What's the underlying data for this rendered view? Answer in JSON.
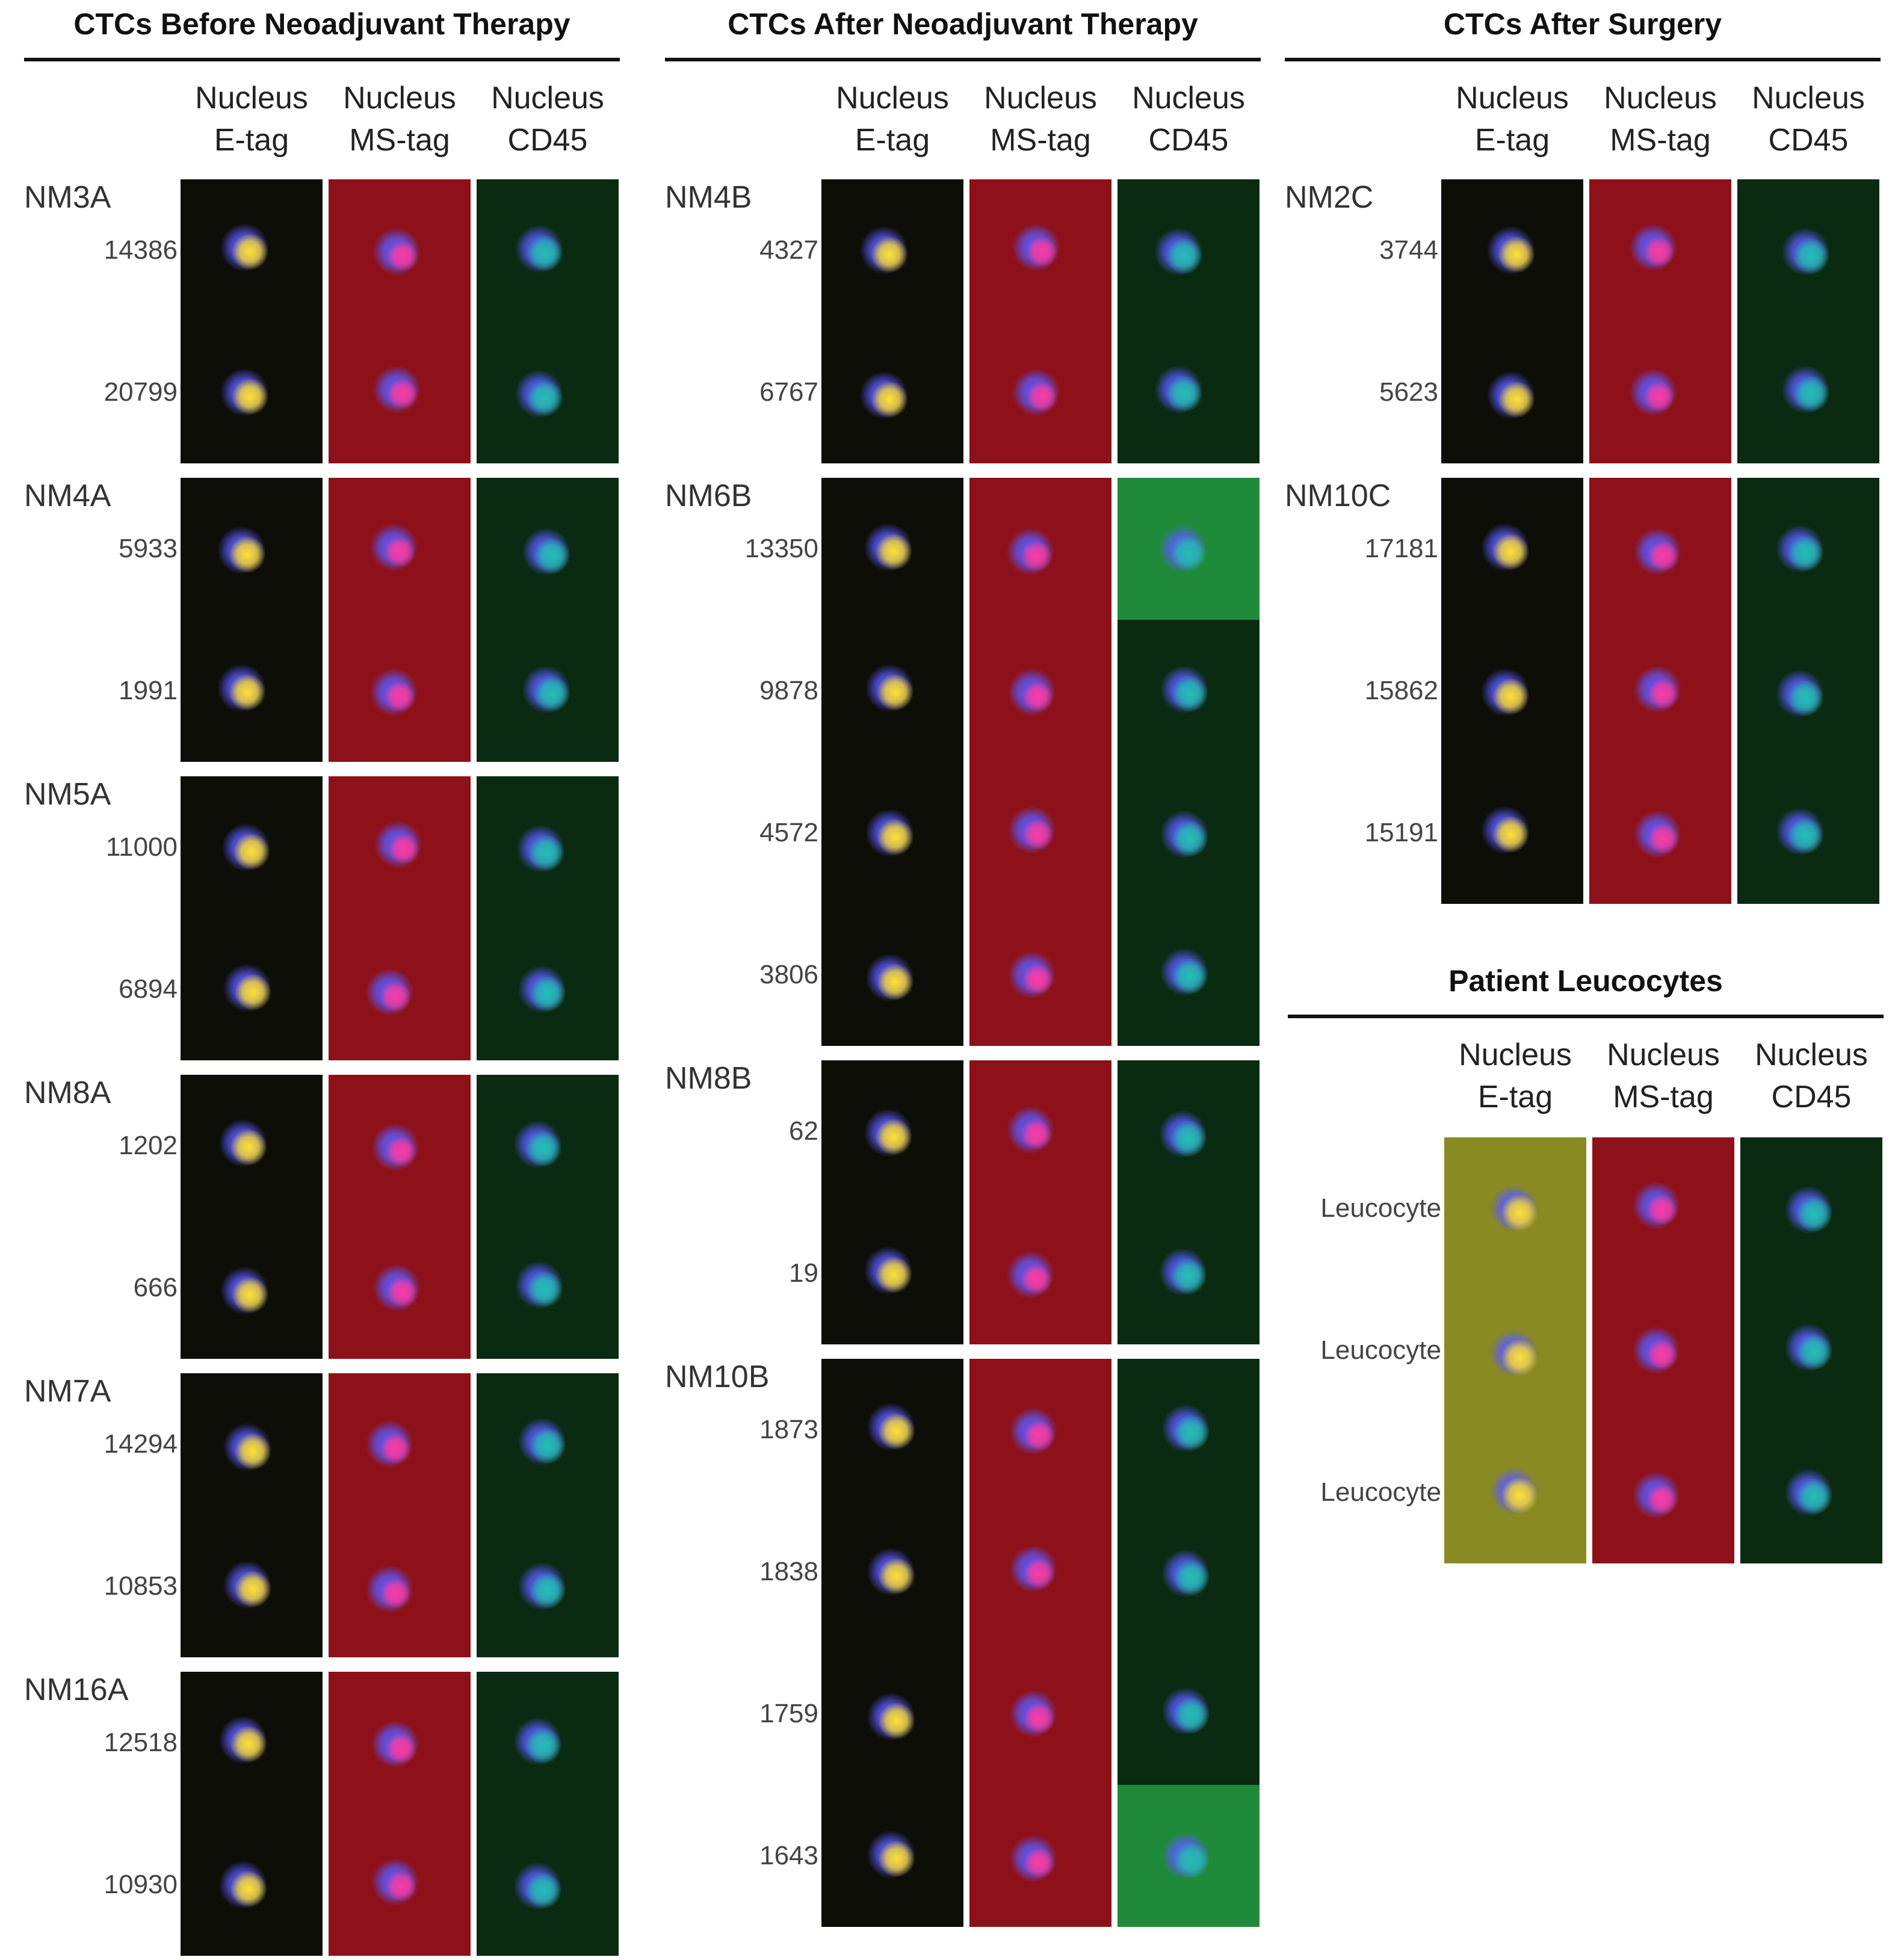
{
  "channel_labels": [
    "Nucleus\nE-tag",
    "Nucleus\nMS-tag",
    "Nucleus\nCD45"
  ],
  "panels": [
    {
      "title": "CTCs Before Neoadjuvant Therapy",
      "groups": [
        {
          "sample": "NM3A",
          "cells": [
            "14386",
            "20799"
          ]
        },
        {
          "sample": "NM4A",
          "cells": [
            "5933",
            "1991"
          ]
        },
        {
          "sample": "NM5A",
          "cells": [
            "11000",
            "6894"
          ]
        },
        {
          "sample": "NM8A",
          "cells": [
            "1202",
            "666"
          ]
        },
        {
          "sample": "NM7A",
          "cells": [
            "14294",
            "10853"
          ]
        },
        {
          "sample": "NM16A",
          "cells": [
            "12518",
            "10930"
          ]
        }
      ]
    },
    {
      "title": "CTCs After Neoadjuvant Therapy",
      "groups": [
        {
          "sample": "NM4B",
          "cells": [
            "4327",
            "6767"
          ]
        },
        {
          "sample": "NM6B",
          "cells": [
            "13350",
            "9878",
            "4572",
            "3806"
          ]
        },
        {
          "sample": "NM8B",
          "cells": [
            "62",
            "19"
          ]
        },
        {
          "sample": "NM10B",
          "cells": [
            "1873",
            "1838",
            "1759",
            "1643"
          ]
        }
      ]
    },
    {
      "title": "CTCs After Surgery",
      "groups": [
        {
          "sample": "NM2C",
          "cells": [
            "3744",
            "5623"
          ]
        },
        {
          "sample": "NM10C",
          "cells": [
            "17181",
            "15862",
            "15191"
          ]
        }
      ]
    },
    {
      "title": "Patient Leucocytes",
      "groups": [
        {
          "sample": "",
          "cells": [
            "Leucocyte",
            "Leucocyte",
            "Leucocyte"
          ]
        }
      ]
    }
  ],
  "colors": {
    "etag_bg": "#0e0e08",
    "etag_bg_bright": "#8a8a22",
    "mstag_bg": "#8e1018",
    "cd45_bg": "#0a2a12",
    "cd45_bg_bright": "#1f8a3a",
    "nucleus": "#5a5aff",
    "etag_signal": "#ffe030",
    "mstag_signal": "#ff3aa0",
    "cd45_signal": "#22c0b0"
  }
}
